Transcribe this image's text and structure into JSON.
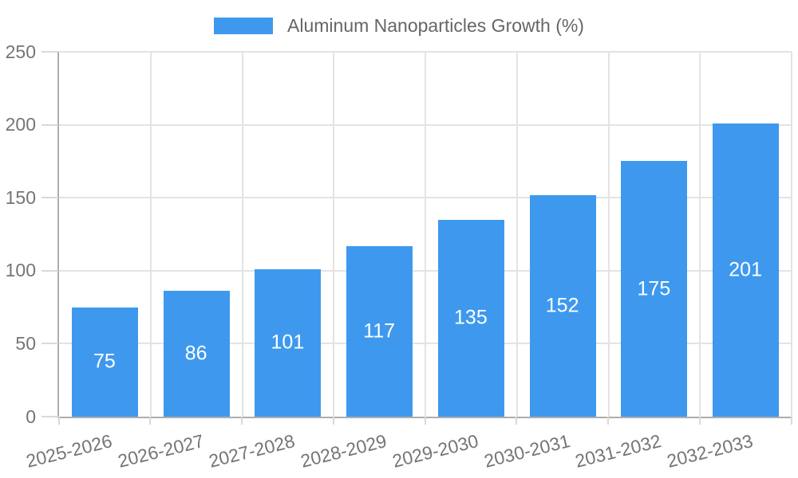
{
  "chart_data": {
    "type": "bar",
    "title": "Aluminum Nanoparticles Growth (%)",
    "legend_entries": [
      "Aluminum Nanoparticles Growth (%)"
    ],
    "legend_position": "top",
    "categories": [
      "2025-2026",
      "2026-2027",
      "2027-2028",
      "2028-2029",
      "2029-2030",
      "2030-2031",
      "2031-2032",
      "2032-2033"
    ],
    "values": [
      75,
      86,
      101,
      117,
      135,
      152,
      175,
      201
    ],
    "value_labels": [
      "75",
      "86",
      "101",
      "117",
      "135",
      "152",
      "175",
      "201"
    ],
    "xlabel": "",
    "ylabel": "",
    "ylim": [
      0,
      250
    ],
    "yticks": [
      0,
      50,
      100,
      150,
      200,
      250
    ],
    "grid": true,
    "colors": {
      "bar": "#3E99EE",
      "value_label": "#FFFFFF",
      "axis": "#ADADAD",
      "gridline": "#E3E3E3",
      "tick": "#D9D9D9",
      "tick_label": "#757575",
      "legend_text": "#666666",
      "background": "#FFFFFF"
    }
  }
}
